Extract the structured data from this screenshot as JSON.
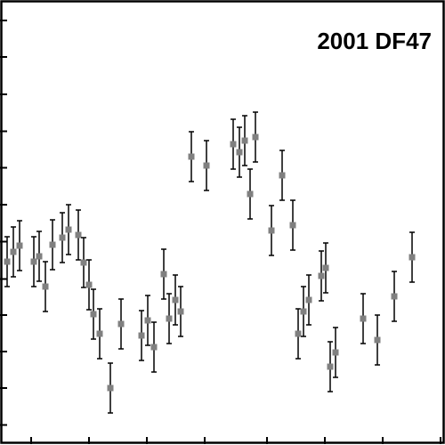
{
  "chart_data": {
    "type": "scatter",
    "title": "2001 DF47",
    "xlabel": "",
    "ylabel": "",
    "xlim": [
      0,
      100
    ],
    "ylim": [
      0,
      100
    ],
    "x_ticks": [
      7,
      20,
      33,
      46,
      60,
      73,
      86,
      99
    ],
    "y_ticks": [
      4.5,
      12.8,
      21,
      29.2,
      37.3,
      45.7,
      54,
      62.3,
      70.5,
      78.8,
      87.2,
      95.4
    ],
    "grid": false,
    "legend": "none",
    "marker_color": "#808080",
    "series": [
      {
        "x": [
          1.6,
          3.0,
          4.4,
          7.6,
          8.8,
          10.2,
          11.8,
          14.0,
          15.4,
          17.6,
          18.8,
          20.0,
          21.0,
          22.4,
          24.8,
          27.2,
          31.8,
          33.2,
          34.6,
          36.8,
          38.0,
          39.4,
          40.6,
          43.0,
          46.4,
          52.4,
          53.8,
          55.0,
          56.2,
          57.4,
          61.0,
          63.4,
          65.8,
          67.0,
          68.2,
          69.4,
          72.2,
          73.2,
          74.2,
          75.4,
          81.6,
          84.8,
          88.6,
          92.6
        ],
        "y": [
          41.2,
          43.4,
          44.8,
          41.2,
          42.4,
          35.6,
          45.0,
          46.6,
          48.4,
          47.2,
          41.0,
          36.0,
          29.4,
          25.0,
          12.8,
          27.2,
          24.6,
          28.0,
          22.0,
          38.4,
          28.4,
          32.6,
          30.0,
          64.8,
          62.8,
          67.6,
          65.8,
          68.4,
          56.4,
          69.2,
          48.2,
          60.6,
          49.4,
          25.0,
          30.0,
          32.6,
          38.0,
          39.8,
          17.6,
          20.8,
          28.4,
          23.6,
          33.4,
          42.2
        ],
        "err": [
          5.6,
          5.6,
          5.6,
          5.6,
          5.6,
          5.6,
          5.6,
          5.6,
          5.6,
          5.6,
          5.6,
          5.6,
          5.6,
          5.6,
          5.6,
          5.6,
          5.6,
          5.6,
          5.6,
          5.6,
          5.6,
          5.6,
          5.6,
          5.6,
          5.6,
          5.6,
          5.6,
          5.6,
          5.6,
          5.6,
          5.6,
          5.6,
          5.6,
          5.6,
          5.6,
          5.6,
          5.6,
          5.6,
          5.6,
          5.6,
          5.6,
          5.6,
          5.6,
          5.6
        ]
      }
    ]
  }
}
